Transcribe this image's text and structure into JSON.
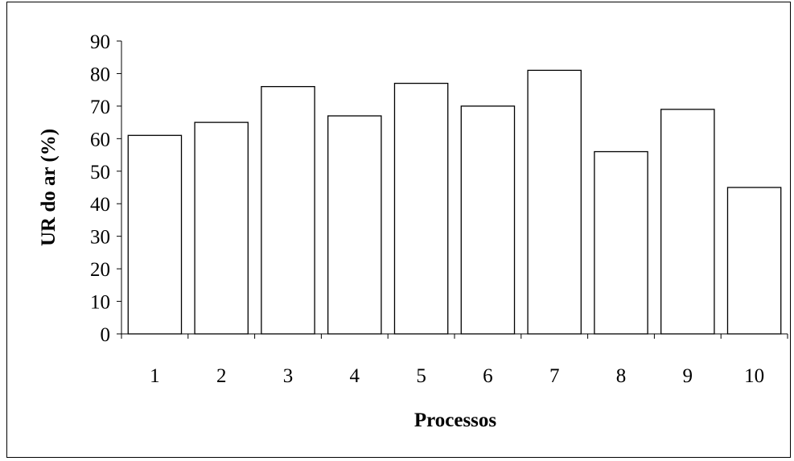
{
  "chart_data": {
    "type": "bar",
    "categories": [
      "1",
      "2",
      "3",
      "4",
      "5",
      "6",
      "7",
      "8",
      "9",
      "10"
    ],
    "values": [
      61,
      65,
      76,
      67,
      77,
      70,
      81,
      56,
      69,
      45
    ],
    "xlabel": "Processos",
    "ylabel": "UR do ar (%)",
    "ylim": [
      0,
      90
    ],
    "yticks": [
      "0",
      "10",
      "20",
      "30",
      "40",
      "50",
      "60",
      "70",
      "80",
      "90"
    ],
    "grid": false,
    "legend": "none",
    "bar_fill": "#ffffff",
    "bar_stroke": "#000000"
  }
}
